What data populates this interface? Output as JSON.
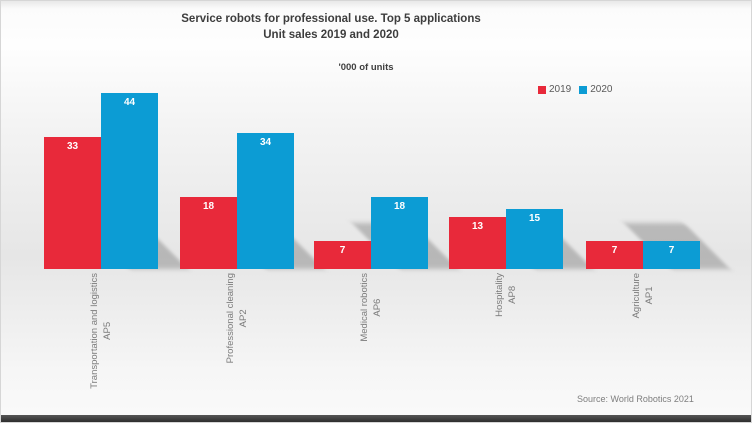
{
  "title": {
    "line1": "Service robots for professional use. Top 5 applications",
    "line2": "Unit sales 2019 and 2020"
  },
  "subtitle": "'000 of units",
  "legend": [
    {
      "label": "2019",
      "color": "#e8293a"
    },
    {
      "label": "2020",
      "color": "#0c9cd4"
    }
  ],
  "source": "Source: World Robotics 2021",
  "chart_data": {
    "type": "bar",
    "title": "Service robots for professional use. Top 5 applications — Unit sales 2019 and 2020",
    "ylabel": "'000 of units",
    "categories": [
      "Transportation and logistics",
      "Professional cleaning",
      "Medical robotics",
      "Hospitality",
      "Agriculture"
    ],
    "category_codes": [
      "AP5",
      "AP2",
      "AP6",
      "AP8",
      "AP1"
    ],
    "series": [
      {
        "name": "2019",
        "color": "#e8293a",
        "values": [
          33,
          18,
          7,
          13,
          7
        ]
      },
      {
        "name": "2020",
        "color": "#0c9cd4",
        "values": [
          44,
          34,
          18,
          15,
          7
        ]
      }
    ],
    "ylim": [
      0,
      45
    ],
    "grid": false,
    "legend_position": "top-right",
    "value_labels": "inside-top",
    "bar_shadows": true
  }
}
